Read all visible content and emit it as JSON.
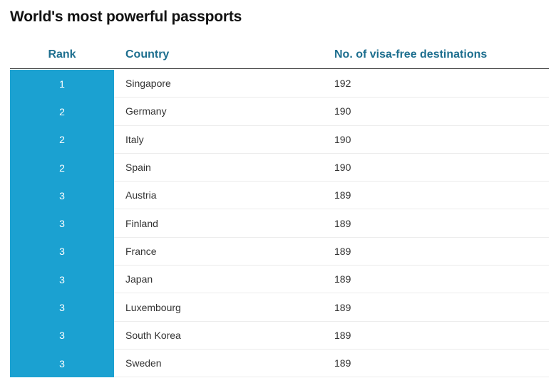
{
  "title": "World's most powerful passports",
  "columns": {
    "rank": "Rank",
    "country": "Country",
    "visa": "No. of visa-free destinations"
  },
  "colors": {
    "rank_cell_bg": "#1ba1d1",
    "header_text": "#1e6f8f"
  },
  "rows": [
    {
      "rank": "1",
      "country": "Singapore",
      "visa": "192"
    },
    {
      "rank": "2",
      "country": "Germany",
      "visa": "190"
    },
    {
      "rank": "2",
      "country": "Italy",
      "visa": "190"
    },
    {
      "rank": "2",
      "country": "Spain",
      "visa": "190"
    },
    {
      "rank": "3",
      "country": "Austria",
      "visa": "189"
    },
    {
      "rank": "3",
      "country": "Finland",
      "visa": "189"
    },
    {
      "rank": "3",
      "country": "France",
      "visa": "189"
    },
    {
      "rank": "3",
      "country": "Japan",
      "visa": "189"
    },
    {
      "rank": "3",
      "country": "Luxembourg",
      "visa": "189"
    },
    {
      "rank": "3",
      "country": "South Korea",
      "visa": "189"
    },
    {
      "rank": "3",
      "country": "Sweden",
      "visa": "189"
    }
  ]
}
